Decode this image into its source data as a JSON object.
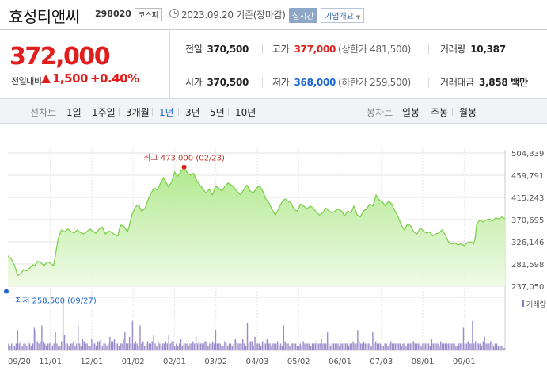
{
  "header": {
    "name": "효성티앤씨",
    "code": "298020",
    "market": "코스피",
    "as_of": "2023.09.20 기준(장마감)",
    "realtime_label": "실시간",
    "company_label": "기업개요"
  },
  "quote": {
    "price": "372,000",
    "diff_label": "전일대비",
    "diff": "1,500",
    "diff_pct": "+0.40%",
    "prev_close_label": "전일",
    "prev_close": "370,500",
    "high_label": "고가",
    "high": "377,000",
    "upper_limit": "(상한가 481,500)",
    "volume_label": "거래량",
    "volume": "10,387",
    "open_label": "시가",
    "open": "370,500",
    "low_label": "저가",
    "low": "368,000",
    "lower_limit": "(하한가 259,500)",
    "amount_label": "거래대금",
    "amount": "3,858 백만"
  },
  "period_bar": {
    "line_chart_label": "선차트",
    "periods": [
      "1일",
      "1주일",
      "3개월",
      "1년",
      "3년",
      "5년",
      "10년"
    ],
    "active_period": "1년",
    "candle_label": "봉차트",
    "candles": [
      "일봉",
      "주봉",
      "월봉"
    ]
  },
  "colors": {
    "up": "#e01e1e",
    "down": "#1b66d1",
    "line": "#7ed04b",
    "volume": "#8a79c2"
  },
  "chart_data": {
    "type": "area",
    "ylim": [
      237050,
      504339
    ],
    "y_ticks": [
      "504,339",
      "459,791",
      "415,243",
      "370,695",
      "326,146",
      "281,598",
      "237,050"
    ],
    "x_tick_labels": [
      "09/20",
      "11/01",
      "12/01",
      "01/02",
      "02/01",
      "03/02",
      "04/03",
      "05/02",
      "06/01",
      "07/03",
      "08/01",
      "09/01"
    ],
    "high_annotation": "최고 473,000 (02/23)",
    "low_annotation": "최저 258,500 (09/27)",
    "volume_label": "거래량",
    "price_series": [
      [
        0,
        298000
      ],
      [
        2,
        292000
      ],
      [
        4,
        280000
      ],
      [
        5,
        272000
      ],
      [
        6,
        258500
      ],
      [
        8,
        262000
      ],
      [
        10,
        270000
      ],
      [
        12,
        268000
      ],
      [
        14,
        274000
      ],
      [
        16,
        280000
      ],
      [
        17,
        278000
      ],
      [
        19,
        287000
      ],
      [
        21,
        284000
      ],
      [
        23,
        278000
      ],
      [
        25,
        286000
      ],
      [
        27,
        283000
      ],
      [
        29,
        278000
      ],
      [
        30,
        295000
      ],
      [
        32,
        333000
      ],
      [
        34,
        350000
      ],
      [
        36,
        346000
      ],
      [
        38,
        352000
      ],
      [
        40,
        347000
      ],
      [
        42,
        344000
      ],
      [
        44,
        350000
      ],
      [
        46,
        345000
      ],
      [
        48,
        342000
      ],
      [
        50,
        346000
      ],
      [
        52,
        352000
      ],
      [
        54,
        348000
      ],
      [
        56,
        343000
      ],
      [
        58,
        352000
      ],
      [
        60,
        356000
      ],
      [
        62,
        342000
      ],
      [
        64,
        348000
      ],
      [
        66,
        345000
      ],
      [
        68,
        340000
      ],
      [
        70,
        338000
      ],
      [
        71,
        354000
      ],
      [
        72,
        360000
      ],
      [
        74,
        356000
      ],
      [
        76,
        346000
      ],
      [
        77,
        356000
      ],
      [
        79,
        382000
      ],
      [
        81,
        396000
      ],
      [
        83,
        400000
      ],
      [
        85,
        388000
      ],
      [
        87,
        392000
      ],
      [
        89,
        410000
      ],
      [
        91,
        424000
      ],
      [
        93,
        434000
      ],
      [
        95,
        430000
      ],
      [
        97,
        444000
      ],
      [
        99,
        455000
      ],
      [
        100,
        449000
      ],
      [
        102,
        436000
      ],
      [
        104,
        446000
      ],
      [
        106,
        466000
      ],
      [
        108,
        458000
      ],
      [
        110,
        468000
      ],
      [
        112,
        473000
      ],
      [
        114,
        465000
      ],
      [
        116,
        460000
      ],
      [
        118,
        464000
      ],
      [
        120,
        449000
      ],
      [
        122,
        440000
      ],
      [
        124,
        432000
      ],
      [
        126,
        424000
      ],
      [
        128,
        432000
      ],
      [
        130,
        420000
      ],
      [
        132,
        438000
      ],
      [
        134,
        434000
      ],
      [
        136,
        428000
      ],
      [
        138,
        438000
      ],
      [
        140,
        444000
      ],
      [
        142,
        440000
      ],
      [
        144,
        434000
      ],
      [
        146,
        426000
      ],
      [
        148,
        420000
      ],
      [
        150,
        432000
      ],
      [
        152,
        440000
      ],
      [
        154,
        428000
      ],
      [
        156,
        424000
      ],
      [
        158,
        434000
      ],
      [
        160,
        438000
      ],
      [
        162,
        428000
      ],
      [
        164,
        412000
      ],
      [
        166,
        404000
      ],
      [
        168,
        390000
      ],
      [
        170,
        380000
      ],
      [
        172,
        392000
      ],
      [
        174,
        405000
      ],
      [
        176,
        412000
      ],
      [
        178,
        408000
      ],
      [
        180,
        404000
      ],
      [
        182,
        390000
      ],
      [
        184,
        388000
      ],
      [
        186,
        402000
      ],
      [
        188,
        398000
      ],
      [
        190,
        392000
      ],
      [
        192,
        398000
      ],
      [
        194,
        394000
      ],
      [
        196,
        386000
      ],
      [
        198,
        380000
      ],
      [
        200,
        384000
      ],
      [
        202,
        394000
      ],
      [
        204,
        388000
      ],
      [
        206,
        384000
      ],
      [
        208,
        388000
      ],
      [
        210,
        392000
      ],
      [
        212,
        388000
      ],
      [
        214,
        378000
      ],
      [
        216,
        388000
      ],
      [
        218,
        384000
      ],
      [
        220,
        398000
      ],
      [
        222,
        380000
      ],
      [
        224,
        376000
      ],
      [
        226,
        388000
      ],
      [
        228,
        392000
      ],
      [
        230,
        402000
      ],
      [
        232,
        398000
      ],
      [
        234,
        420000
      ],
      [
        236,
        410000
      ],
      [
        238,
        406000
      ],
      [
        240,
        398000
      ],
      [
        242,
        408000
      ],
      [
        244,
        402000
      ],
      [
        246,
        388000
      ],
      [
        248,
        376000
      ],
      [
        250,
        360000
      ],
      [
        252,
        350000
      ],
      [
        254,
        362000
      ],
      [
        256,
        358000
      ],
      [
        258,
        346000
      ],
      [
        260,
        342000
      ],
      [
        262,
        354000
      ],
      [
        264,
        348000
      ],
      [
        266,
        344000
      ],
      [
        268,
        346000
      ],
      [
        270,
        338000
      ],
      [
        272,
        342000
      ],
      [
        274,
        344000
      ],
      [
        276,
        350000
      ],
      [
        278,
        340000
      ],
      [
        280,
        326000
      ],
      [
        282,
        322000
      ],
      [
        284,
        324000
      ],
      [
        286,
        320000
      ],
      [
        288,
        322000
      ],
      [
        290,
        318000
      ],
      [
        292,
        324000
      ],
      [
        294,
        326000
      ],
      [
        296,
        322000
      ],
      [
        297,
        332000
      ],
      [
        298,
        362000
      ],
      [
        300,
        370000
      ],
      [
        302,
        366000
      ],
      [
        304,
        370000
      ],
      [
        306,
        372000
      ],
      [
        308,
        368000
      ],
      [
        310,
        374000
      ],
      [
        312,
        372000
      ],
      [
        314,
        376000
      ],
      [
        316,
        372000
      ]
    ],
    "volume_series": [
      3,
      2,
      3,
      2,
      2,
      3,
      9,
      3,
      4,
      2,
      3,
      3,
      2,
      4,
      3,
      2,
      3,
      10,
      9,
      4,
      3,
      4,
      11,
      4,
      3,
      2,
      3,
      3,
      4,
      2,
      3,
      8,
      3,
      2,
      2,
      4,
      22,
      7,
      3,
      3,
      2,
      3,
      3,
      4,
      2,
      3,
      11,
      3,
      2,
      5,
      4,
      3,
      3,
      2,
      2,
      5,
      3,
      3,
      2,
      4,
      4,
      5,
      2,
      3,
      3,
      2,
      3,
      6,
      4,
      4,
      5,
      3,
      3,
      2,
      3,
      3,
      5,
      8,
      3,
      3,
      6,
      3,
      13,
      3,
      4,
      3,
      2,
      11,
      3,
      4,
      2,
      3,
      4,
      3,
      3,
      4,
      7,
      3,
      2,
      4,
      3,
      2,
      3,
      3,
      4,
      3,
      7,
      3,
      4,
      4,
      2,
      3,
      2,
      3,
      5,
      2,
      3,
      3,
      3,
      2,
      3,
      3,
      4,
      3,
      6,
      3,
      4,
      3,
      3,
      3,
      4,
      4,
      2,
      3,
      3,
      4,
      3,
      9,
      3,
      3,
      3,
      2,
      2,
      4,
      3,
      2,
      3,
      3,
      2,
      3,
      5,
      4,
      3,
      3,
      3,
      5,
      3,
      2,
      12,
      3,
      4,
      4,
      2,
      6,
      3,
      3,
      3,
      2,
      4,
      3,
      3,
      5,
      3,
      3,
      2,
      3,
      3,
      3,
      4,
      2,
      3,
      2,
      11,
      4,
      3,
      3,
      2,
      3,
      3,
      3,
      3,
      2,
      2,
      3,
      2,
      4,
      3,
      3,
      3,
      3,
      2,
      3,
      3,
      3,
      4,
      3,
      3,
      5,
      3,
      3,
      3,
      8,
      3,
      2,
      3,
      3,
      3,
      3,
      3,
      2,
      3,
      3,
      3,
      3,
      3,
      2,
      3,
      3,
      4,
      3,
      3,
      9,
      4,
      3,
      3,
      4,
      3,
      3,
      3,
      3,
      2,
      8,
      3,
      4,
      3,
      3,
      3,
      2,
      2,
      3,
      3,
      2,
      3,
      4,
      3,
      3,
      3,
      3,
      3,
      3,
      2,
      3,
      3,
      2,
      3,
      3,
      3,
      4,
      4,
      3,
      3,
      3,
      3,
      2,
      3,
      3,
      3,
      3,
      3,
      2,
      5,
      3,
      3,
      3,
      3,
      2,
      4,
      3,
      3,
      3,
      3,
      3,
      3,
      3,
      3,
      3,
      2,
      2,
      3,
      3,
      3,
      10,
      3,
      3,
      4,
      3,
      3,
      13,
      3,
      4,
      3,
      3,
      3,
      2,
      4,
      6,
      3,
      3,
      3,
      4,
      3,
      2,
      3,
      3,
      2,
      2,
      2,
      2,
      1
    ]
  }
}
